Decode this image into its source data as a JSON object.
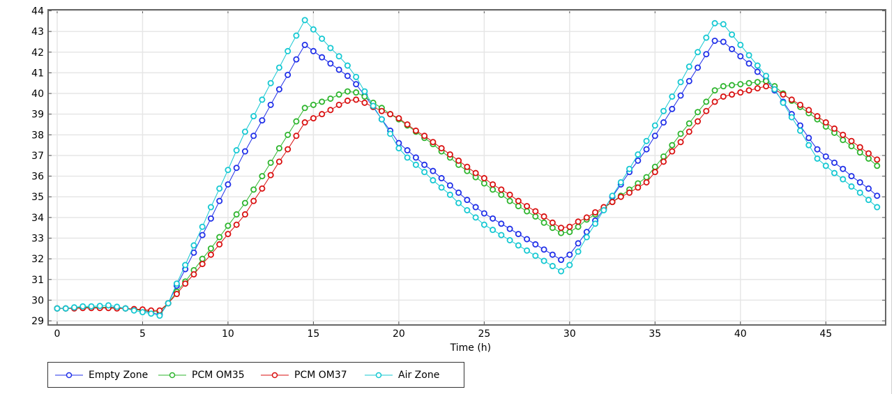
{
  "chart_data": {
    "type": "line",
    "title": "",
    "xlabel": "Time (h)",
    "ylabel": "",
    "xlim": [
      -0.53,
      48.5
    ],
    "ylim": [
      28.8,
      44.05
    ],
    "grid": true,
    "legend_position": "bottom-left",
    "x_ticks": [
      0,
      5,
      10,
      15,
      20,
      25,
      30,
      35,
      40,
      45
    ],
    "y_ticks": [
      29,
      30,
      31,
      32,
      33,
      34,
      35,
      36,
      37,
      38,
      39,
      40,
      41,
      42,
      43,
      44
    ],
    "x": [
      0,
      0.5,
      1,
      1.5,
      2,
      2.5,
      3,
      3.5,
      4,
      4.5,
      5,
      5.5,
      6,
      6.5,
      7,
      7.5,
      8,
      8.5,
      9,
      9.5,
      10,
      10.5,
      11,
      11.5,
      12,
      12.5,
      13,
      13.5,
      14,
      14.5,
      15,
      15.5,
      16,
      16.5,
      17,
      17.5,
      18,
      18.5,
      19,
      19.5,
      20,
      20.5,
      21,
      21.5,
      22,
      22.5,
      23,
      23.5,
      24,
      24.5,
      25,
      25.5,
      26,
      26.5,
      27,
      27.5,
      28,
      28.5,
      29,
      29.5,
      30,
      30.5,
      31,
      31.5,
      32,
      32.5,
      33,
      33.5,
      34,
      34.5,
      35,
      35.5,
      36,
      36.5,
      37,
      37.5,
      38,
      38.5,
      39,
      39.5,
      40,
      40.5,
      41,
      41.5,
      42,
      42.5,
      43,
      43.5,
      44,
      44.5,
      45,
      45.5,
      46,
      46.5,
      47,
      47.5,
      48
    ],
    "series": [
      {
        "name": "Empty Zone",
        "color": "#1f2fe8",
        "values": [
          29.6,
          29.6,
          29.62,
          29.65,
          29.65,
          29.65,
          29.65,
          29.65,
          29.6,
          29.55,
          29.5,
          29.4,
          29.3,
          29.85,
          30.7,
          31.5,
          32.3,
          33.15,
          33.95,
          34.8,
          35.6,
          36.4,
          37.2,
          37.95,
          38.7,
          39.45,
          40.2,
          40.9,
          41.65,
          42.35,
          42.05,
          41.75,
          41.45,
          41.15,
          40.85,
          40.45,
          39.9,
          39.35,
          38.75,
          38.2,
          37.6,
          37.25,
          36.9,
          36.55,
          36.25,
          35.9,
          35.55,
          35.2,
          34.85,
          34.5,
          34.2,
          33.95,
          33.7,
          33.45,
          33.2,
          32.95,
          32.7,
          32.45,
          32.2,
          31.95,
          32.2,
          32.75,
          33.3,
          33.85,
          34.4,
          35.0,
          35.6,
          36.2,
          36.75,
          37.3,
          37.95,
          38.6,
          39.25,
          39.9,
          40.6,
          41.25,
          41.9,
          42.55,
          42.5,
          42.15,
          41.8,
          41.45,
          41.05,
          40.65,
          40.15,
          39.6,
          39.0,
          38.45,
          37.85,
          37.3,
          36.95,
          36.65,
          36.35,
          36.0,
          35.7,
          35.4,
          35.05
        ]
      },
      {
        "name": "PCM OM35",
        "color": "#2db52d",
        "values": [
          29.6,
          29.6,
          29.62,
          29.65,
          29.65,
          29.65,
          29.65,
          29.62,
          29.6,
          29.55,
          29.5,
          29.45,
          29.45,
          29.85,
          30.4,
          30.9,
          31.45,
          32.0,
          32.5,
          33.05,
          33.6,
          34.15,
          34.7,
          35.35,
          36.0,
          36.65,
          37.35,
          38.0,
          38.65,
          39.3,
          39.45,
          39.6,
          39.75,
          39.95,
          40.1,
          40.05,
          39.85,
          39.55,
          39.3,
          39.0,
          38.75,
          38.45,
          38.15,
          37.85,
          37.55,
          37.2,
          36.9,
          36.55,
          36.25,
          35.95,
          35.65,
          35.35,
          35.1,
          34.8,
          34.55,
          34.3,
          34.05,
          33.75,
          33.5,
          33.25,
          33.3,
          33.55,
          33.9,
          34.15,
          34.45,
          34.75,
          35.05,
          35.35,
          35.65,
          35.95,
          36.45,
          36.95,
          37.5,
          38.05,
          38.55,
          39.1,
          39.6,
          40.15,
          40.35,
          40.4,
          40.45,
          40.5,
          40.55,
          40.6,
          40.35,
          40.0,
          39.65,
          39.35,
          39.05,
          38.75,
          38.4,
          38.1,
          37.75,
          37.45,
          37.15,
          36.85,
          36.5
        ]
      },
      {
        "name": "PCM OM37",
        "color": "#d90f0f",
        "values": [
          29.6,
          29.6,
          29.6,
          29.62,
          29.62,
          29.62,
          29.62,
          29.6,
          29.6,
          29.57,
          29.55,
          29.5,
          29.5,
          29.85,
          30.3,
          30.8,
          31.25,
          31.75,
          32.2,
          32.7,
          33.2,
          33.65,
          34.15,
          34.8,
          35.4,
          36.05,
          36.7,
          37.3,
          37.95,
          38.6,
          38.8,
          39.0,
          39.2,
          39.45,
          39.65,
          39.7,
          39.55,
          39.35,
          39.15,
          39.0,
          38.8,
          38.5,
          38.2,
          37.95,
          37.65,
          37.35,
          37.05,
          36.75,
          36.45,
          36.15,
          35.9,
          35.6,
          35.35,
          35.1,
          34.8,
          34.55,
          34.3,
          34.05,
          33.75,
          33.5,
          33.55,
          33.8,
          34.0,
          34.25,
          34.5,
          34.75,
          35.0,
          35.2,
          35.45,
          35.7,
          36.2,
          36.7,
          37.2,
          37.65,
          38.15,
          38.65,
          39.15,
          39.6,
          39.85,
          39.95,
          40.05,
          40.15,
          40.25,
          40.35,
          40.2,
          39.95,
          39.7,
          39.45,
          39.2,
          38.9,
          38.6,
          38.3,
          38.0,
          37.7,
          37.4,
          37.1,
          36.8
        ]
      },
      {
        "name": "Air Zone",
        "color": "#14c8d2",
        "values": [
          29.6,
          29.6,
          29.65,
          29.7,
          29.7,
          29.72,
          29.75,
          29.68,
          29.6,
          29.5,
          29.42,
          29.35,
          29.25,
          29.85,
          30.8,
          31.7,
          32.65,
          33.55,
          34.5,
          35.4,
          36.3,
          37.25,
          38.15,
          38.9,
          39.7,
          40.5,
          41.25,
          42.05,
          42.8,
          43.55,
          43.1,
          42.65,
          42.2,
          41.8,
          41.35,
          40.8,
          40.1,
          39.4,
          38.75,
          38.05,
          37.35,
          36.9,
          36.55,
          36.2,
          35.8,
          35.45,
          35.1,
          34.7,
          34.35,
          34.0,
          33.65,
          33.4,
          33.15,
          32.9,
          32.65,
          32.4,
          32.15,
          31.9,
          31.65,
          31.4,
          31.7,
          32.35,
          33.05,
          33.7,
          34.35,
          35.05,
          35.7,
          36.35,
          37.05,
          37.7,
          38.45,
          39.15,
          39.85,
          40.55,
          41.3,
          42.0,
          42.7,
          43.4,
          43.35,
          42.85,
          42.35,
          41.85,
          41.35,
          40.85,
          40.2,
          39.55,
          38.85,
          38.2,
          37.5,
          36.85,
          36.5,
          36.15,
          35.85,
          35.5,
          35.2,
          34.85,
          34.5
        ]
      }
    ]
  }
}
